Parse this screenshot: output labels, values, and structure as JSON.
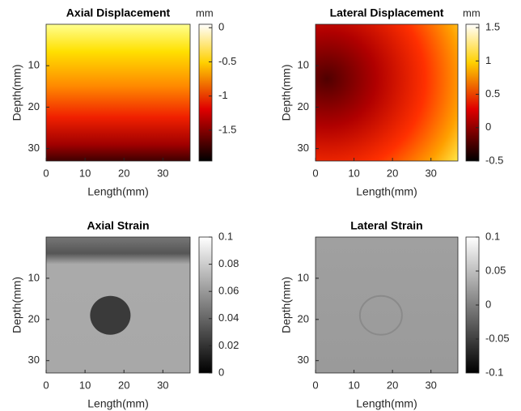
{
  "chart_data": [
    {
      "type": "heatmap",
      "title": "Axial Displacement",
      "xlabel": "Length(mm)",
      "ylabel": "Depth(mm)",
      "xlim": [
        0,
        37
      ],
      "xticks": [
        0,
        10,
        20,
        30
      ],
      "ylim": [
        0,
        33
      ],
      "yticks": [
        10,
        20,
        30
      ],
      "colormap": "hot",
      "colorbar_label": "mm",
      "clim": [
        -1.95,
        0.05
      ],
      "cticks": [
        0,
        -0.5,
        -1,
        -1.5
      ]
    },
    {
      "type": "heatmap",
      "title": "Lateral Displacement",
      "xlabel": "Length(mm)",
      "ylabel": "Depth(mm)",
      "xlim": [
        0,
        37
      ],
      "xticks": [
        0,
        10,
        20,
        30
      ],
      "ylim": [
        0,
        33
      ],
      "yticks": [
        10,
        20,
        30
      ],
      "colormap": "hot",
      "colorbar_label": "mm",
      "clim": [
        -0.5,
        1.55
      ],
      "cticks": [
        1.5,
        1,
        0.5,
        0,
        -0.5
      ]
    },
    {
      "type": "heatmap",
      "title": "Axial Strain",
      "xlabel": "Length(mm)",
      "ylabel": "Depth(mm)",
      "xlim": [
        0,
        37
      ],
      "xticks": [
        0,
        10,
        20,
        30
      ],
      "ylim": [
        0,
        33
      ],
      "yticks": [
        10,
        20,
        30
      ],
      "colormap": "gray",
      "clim": [
        0,
        0.1
      ],
      "cticks": [
        0.1,
        0.08,
        0.06,
        0.04,
        0.02,
        0
      ]
    },
    {
      "type": "heatmap",
      "title": "Lateral Strain",
      "xlabel": "Length(mm)",
      "ylabel": "Depth(mm)",
      "xlim": [
        0,
        37
      ],
      "xticks": [
        0,
        10,
        20,
        30
      ],
      "ylim": [
        0,
        33
      ],
      "yticks": [
        10,
        20,
        30
      ],
      "colormap": "gray",
      "clim": [
        -0.1,
        0.1
      ],
      "cticks": [
        0.1,
        0.05,
        0,
        -0.05,
        -0.1
      ]
    }
  ]
}
